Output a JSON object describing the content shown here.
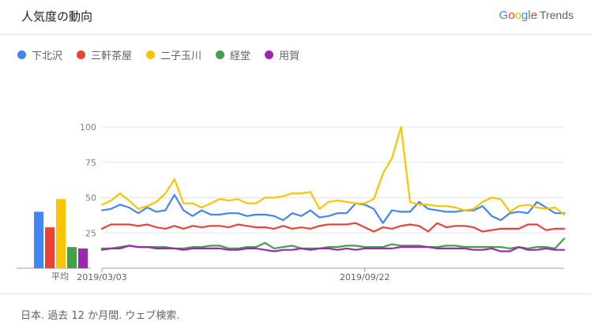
{
  "header": {
    "title": "人気度の動向",
    "brand_letters": [
      "G",
      "o",
      "o",
      "g",
      "l",
      "e"
    ],
    "brand_colors": [
      "#4285F4",
      "#EA4335",
      "#FBBC05",
      "#4285F4",
      "#34A853",
      "#EA4335"
    ],
    "brand_suffix": "Trends"
  },
  "legend": [
    {
      "name": "下北沢",
      "color": "#4285F4"
    },
    {
      "name": "三軒茶屋",
      "color": "#EA4335"
    },
    {
      "name": "二子玉川",
      "color": "#F9C400"
    },
    {
      "name": "経堂",
      "color": "#43A047"
    },
    {
      "name": "用賀",
      "color": "#9C27B0"
    }
  ],
  "footer": {
    "text": "日本. 過去 12 か月間. ウェブ検索."
  },
  "chart_data": [
    {
      "type": "bar",
      "xlabel": "平均",
      "categories": [
        "下北沢",
        "三軒茶屋",
        "二子玉川",
        "経堂",
        "用賀"
      ],
      "values": [
        40,
        29,
        49,
        15,
        14
      ],
      "colors": [
        "#4285F4",
        "#EA4335",
        "#F9C400",
        "#43A047",
        "#9C27B0"
      ],
      "ylim": [
        0,
        100
      ]
    },
    {
      "type": "line",
      "title": "",
      "xlabel": "",
      "ylabel": "",
      "ylim": [
        0,
        100
      ],
      "yticks": [
        25,
        50,
        75,
        100
      ],
      "x_tick_labels": [
        "2019/03/03",
        "2019/09/22"
      ],
      "x_tick_indices": [
        0,
        29
      ],
      "grid": true,
      "series": [
        {
          "name": "下北沢",
          "color": "#4285F4",
          "values": [
            41,
            42,
            45,
            43,
            39,
            43,
            40,
            41,
            52,
            41,
            37,
            41,
            38,
            38,
            39,
            39,
            37,
            38,
            38,
            37,
            34,
            39,
            37,
            41,
            36,
            37,
            39,
            39,
            46,
            45,
            42,
            32,
            41,
            40,
            40,
            47,
            42,
            41,
            40,
            40,
            41,
            41,
            44,
            37,
            34,
            39,
            40,
            39,
            47,
            43,
            39,
            39
          ]
        },
        {
          "name": "三軒茶屋",
          "color": "#EA4335",
          "values": [
            28,
            31,
            31,
            31,
            30,
            31,
            29,
            28,
            30,
            28,
            30,
            29,
            30,
            30,
            29,
            31,
            30,
            29,
            29,
            28,
            30,
            28,
            29,
            28,
            30,
            31,
            31,
            31,
            32,
            29,
            26,
            29,
            28,
            30,
            31,
            30,
            26,
            32,
            29,
            30,
            30,
            29,
            26,
            27,
            28,
            28,
            28,
            31,
            31,
            27,
            28,
            28
          ]
        },
        {
          "name": "二子玉川",
          "color": "#F9C400",
          "values": [
            45,
            48,
            53,
            48,
            42,
            44,
            47,
            53,
            63,
            46,
            46,
            43,
            46,
            49,
            48,
            49,
            46,
            46,
            50,
            50,
            51,
            53,
            53,
            54,
            42,
            47,
            48,
            47,
            46,
            46,
            49,
            67,
            78,
            100,
            47,
            45,
            45,
            44,
            44,
            43,
            41,
            42,
            47,
            50,
            49,
            40,
            44,
            45,
            43,
            42,
            43,
            38
          ]
        },
        {
          "name": "経堂",
          "color": "#43A047",
          "values": [
            14,
            14,
            15,
            16,
            15,
            15,
            15,
            15,
            14,
            14,
            15,
            15,
            16,
            16,
            14,
            14,
            15,
            15,
            18,
            14,
            15,
            16,
            14,
            14,
            14,
            15,
            15,
            16,
            16,
            15,
            15,
            15,
            17,
            16,
            16,
            16,
            15,
            15,
            16,
            16,
            15,
            15,
            15,
            15,
            15,
            14,
            15,
            14,
            15,
            15,
            14,
            21
          ]
        },
        {
          "name": "用賀",
          "color": "#9C27B0",
          "values": [
            13,
            14,
            14,
            16,
            15,
            15,
            14,
            14,
            14,
            13,
            14,
            14,
            14,
            14,
            13,
            13,
            14,
            14,
            13,
            12,
            13,
            13,
            14,
            13,
            14,
            14,
            13,
            14,
            13,
            14,
            14,
            14,
            14,
            15,
            15,
            15,
            15,
            14,
            14,
            14,
            14,
            13,
            13,
            14,
            12,
            12,
            15,
            13,
            13,
            14,
            13,
            13
          ]
        }
      ]
    }
  ]
}
